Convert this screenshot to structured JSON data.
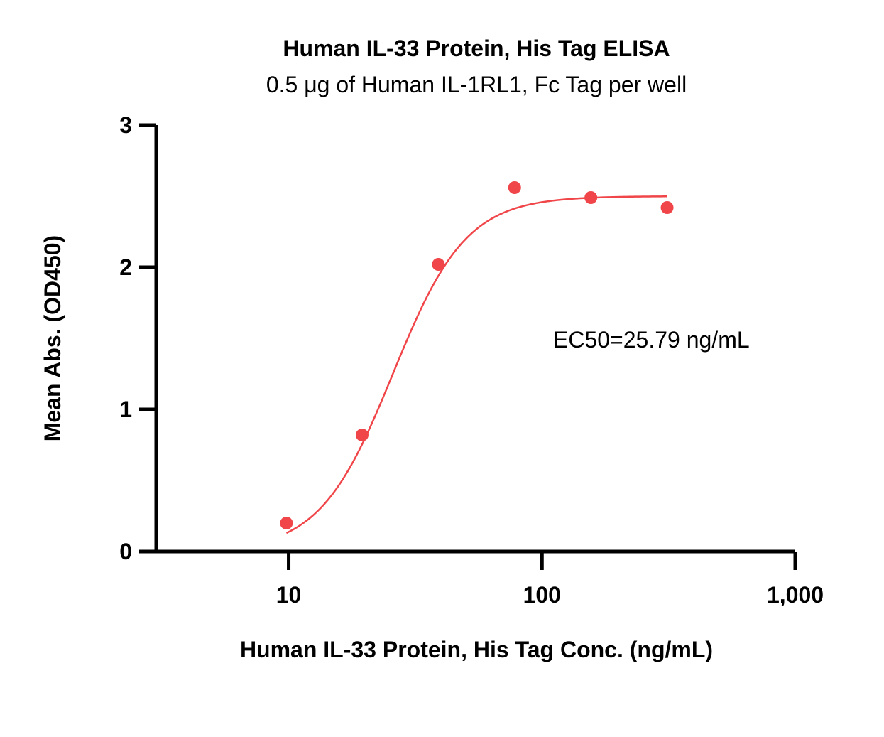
{
  "chart_data": {
    "type": "scatter",
    "title": "Human IL-33 Protein, His Tag ELISA",
    "subtitle": "0.5 μg of Human IL-1RL1, Fc Tag per well",
    "xlabel": "Human IL-33 Protein, His Tag Conc. (ng/mL)",
    "ylabel": "Mean Abs. (OD450)",
    "x_scale": "log",
    "xlim": [
      3,
      1000
    ],
    "ylim": [
      0,
      3
    ],
    "x_ticks": [
      10,
      100,
      1000
    ],
    "x_tick_labels": [
      "10",
      "100",
      "1,000"
    ],
    "y_ticks": [
      0,
      1,
      2,
      3
    ],
    "y_tick_labels": [
      "0",
      "1",
      "2",
      "3"
    ],
    "grid": false,
    "legend": "none",
    "series": [
      {
        "x": [
          9.8,
          19.5,
          39,
          78,
          156,
          312
        ],
        "y": [
          0.2,
          0.82,
          2.02,
          2.56,
          2.49,
          2.42
        ],
        "color": "#f0464a",
        "fit": "4PL sigmoid",
        "fit_params": {
          "bottom": 0.0,
          "top": 2.5,
          "ec50": 25.79,
          "hill": 3.0
        }
      }
    ],
    "annotations": [
      {
        "text": "EC50=25.79 ng/mL",
        "x": 260,
        "y": 1.5
      }
    ]
  }
}
